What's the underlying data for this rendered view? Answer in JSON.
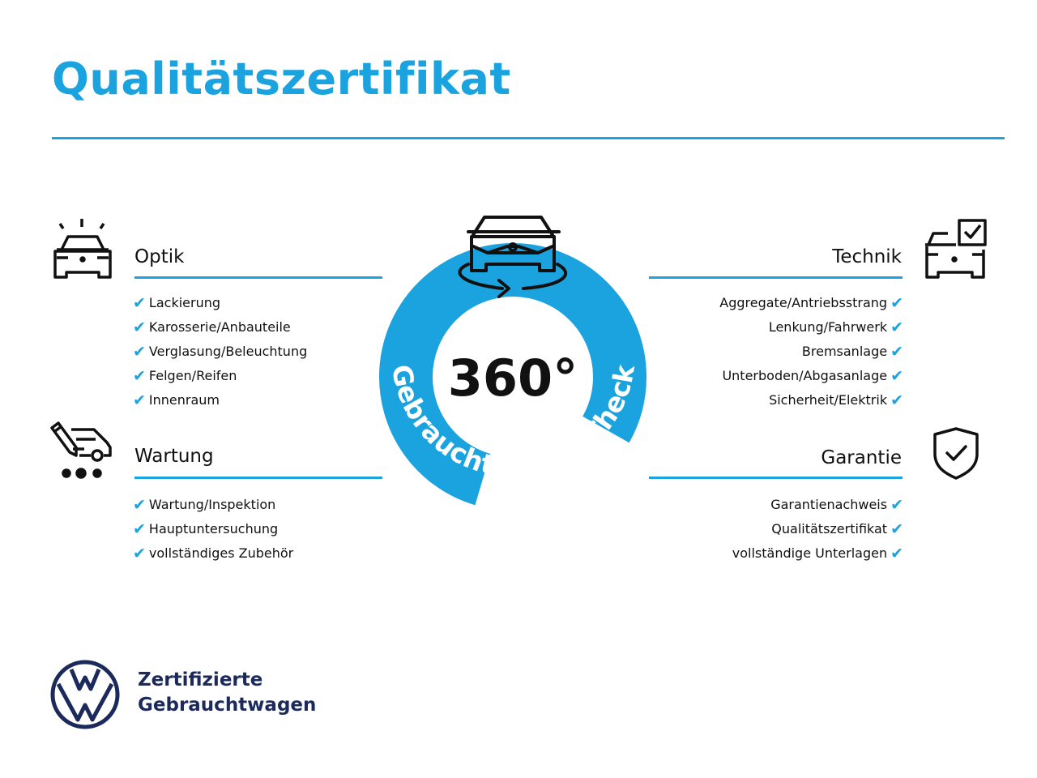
{
  "title": "Qualitätszertifikat",
  "accent_color": "#1aa3df",
  "center_badge": {
    "number": "360°",
    "arc_text": "Gebrauchtwagen-Check",
    "icon": "car-rotate-icon"
  },
  "sections": {
    "optik": {
      "title": "Optik",
      "icon": "car-lights-icon",
      "items": [
        "Lackierung",
        "Karosserie/Anbauteile",
        "Verglasung/Beleuchtung",
        "Felgen/Reifen",
        "Innenraum"
      ]
    },
    "wartung": {
      "title": "Wartung",
      "icon": "service-icon",
      "items": [
        "Wartung/Inspektion",
        "Hauptuntersuchung",
        "vollständiges Zubehör"
      ]
    },
    "technik": {
      "title": "Technik",
      "icon": "car-checkbox-icon",
      "items": [
        "Aggregate/Antriebsstrang",
        "Lenkung/Fahrwerk",
        "Bremsanlage",
        "Unterboden/Abgasanlage",
        "Sicherheit/Elektrik"
      ]
    },
    "garantie": {
      "title": "Garantie",
      "icon": "shield-check-icon",
      "items": [
        "Garantienachweis",
        "Qualitätszertifikat",
        "vollständige Unterlagen"
      ]
    }
  },
  "check_glyph": "✔",
  "brand": {
    "line1": "Zertifizierte",
    "line2": "Gebrauchtwagen",
    "logo": "vw-logo"
  }
}
